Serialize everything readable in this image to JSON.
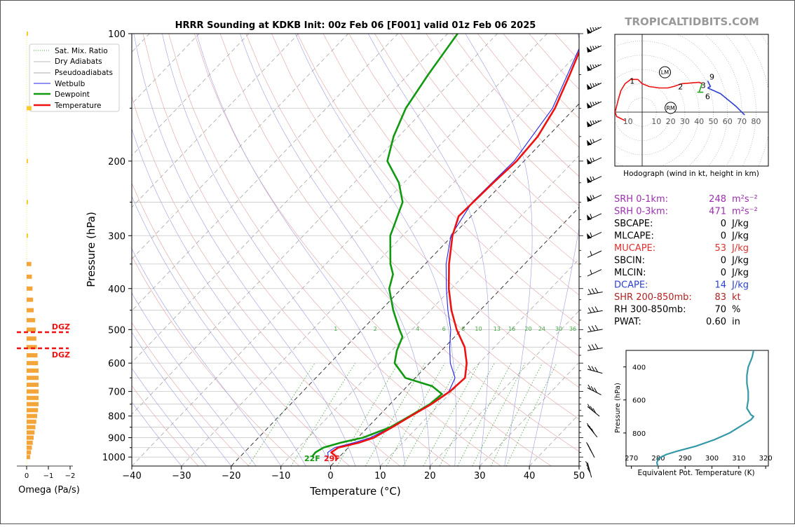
{
  "watermark": "TROPICALTIDBITS.COM",
  "chart_data": [
    {
      "type": "line",
      "name": "skew-t",
      "title": "HRRR Sounding at KDKB Init: 00z Feb 06 [F001] valid 01z Feb 06 2025",
      "xlabel": "Temperature (°C)",
      "ylabel": "Pressure (hPa)",
      "xlim": [
        -40,
        50
      ],
      "ylim": [
        1050,
        100
      ],
      "y_scale": "log",
      "x_ticks": [
        "−40",
        "−30",
        "−20",
        "−10",
        "0",
        "10",
        "20",
        "30",
        "40",
        "50"
      ],
      "y_ticks": [
        "100",
        "200",
        "300",
        "400",
        "500",
        "600",
        "700",
        "800",
        "900",
        "1000"
      ],
      "legend": [
        "Sat. Mix. Ratio",
        "Dry Adiabats",
        "Pseudoadiabats",
        "Wetbulb",
        "Dewpoint",
        "Temperature"
      ],
      "legend_position": "top-left",
      "grid": true,
      "colors": {
        "temperature": "#ee1111",
        "dewpoint": "#119911",
        "wetbulb": "#2222ee",
        "mixratio": "#44aa44"
      },
      "mixing_ratio_labels": [
        "1",
        "2",
        "4",
        "6",
        "8",
        "10",
        "13",
        "16",
        "20",
        "24",
        "30",
        "36"
      ],
      "surface_labels": {
        "dewpoint": "22F",
        "temperature": "29F"
      },
      "series": [
        {
          "name": "Temperature",
          "points": [
            [
              1000,
              -0.5
            ],
            [
              975,
              -2.5
            ],
            [
              950,
              -2.0
            ],
            [
              925,
              1.2
            ],
            [
              900,
              3.2
            ],
            [
              850,
              4.9
            ],
            [
              800,
              6.5
            ],
            [
              750,
              8.3
            ],
            [
              700,
              9.6
            ],
            [
              650,
              10.0
            ],
            [
              600,
              7.5
            ],
            [
              550,
              4.0
            ],
            [
              500,
              -1.0
            ],
            [
              450,
              -5.8
            ],
            [
              400,
              -10.5
            ],
            [
              350,
              -15.2
            ],
            [
              300,
              -20.0
            ],
            [
              270,
              -22.5
            ],
            [
              250,
              -22.3
            ],
            [
              225,
              -22.0
            ],
            [
              200,
              -21.5
            ],
            [
              175,
              -22.0
            ],
            [
              150,
              -24.0
            ],
            [
              125,
              -27.5
            ],
            [
              100,
              -32.0
            ]
          ]
        },
        {
          "name": "Dewpoint",
          "points": [
            [
              1000,
              -5.5
            ],
            [
              975,
              -5.7
            ],
            [
              950,
              -5.0
            ],
            [
              925,
              -2.5
            ],
            [
              900,
              1.0
            ],
            [
              850,
              4.5
            ],
            [
              800,
              6.3
            ],
            [
              750,
              8.0
            ],
            [
              710,
              8.5
            ],
            [
              680,
              5.0
            ],
            [
              650,
              -2.0
            ],
            [
              600,
              -7.0
            ],
            [
              560,
              -9.0
            ],
            [
              520,
              -10.5
            ],
            [
              500,
              -12.5
            ],
            [
              450,
              -17.5
            ],
            [
              400,
              -22.5
            ],
            [
              370,
              -24.5
            ],
            [
              350,
              -27.0
            ],
            [
              300,
              -32.5
            ],
            [
              280,
              -34.0
            ],
            [
              250,
              -36.5
            ],
            [
              225,
              -41.0
            ],
            [
              200,
              -47.5
            ],
            [
              175,
              -51.0
            ],
            [
              150,
              -54.0
            ],
            [
              125,
              -56.0
            ],
            [
              100,
              -58.0
            ]
          ]
        },
        {
          "name": "Wetbulb",
          "points": [
            [
              1000,
              -2.2
            ],
            [
              975,
              -3.2
            ],
            [
              950,
              -2.7
            ],
            [
              925,
              0.2
            ],
            [
              900,
              2.5
            ],
            [
              850,
              4.7
            ],
            [
              800,
              6.4
            ],
            [
              750,
              8.2
            ],
            [
              700,
              9.4
            ],
            [
              650,
              8.0
            ],
            [
              600,
              4.2
            ],
            [
              550,
              1.0
            ],
            [
              500,
              -2.2
            ],
            [
              450,
              -6.5
            ],
            [
              400,
              -11.0
            ],
            [
              350,
              -15.8
            ],
            [
              300,
              -20.3
            ],
            [
              250,
              -22.5
            ],
            [
              200,
              -22.0
            ],
            [
              150,
              -24.5
            ],
            [
              100,
              -32.2
            ]
          ]
        }
      ],
      "wind_barb_count": 24
    },
    {
      "type": "bar",
      "name": "omega",
      "xlabel": "Omega (Pa/s)",
      "x_ticks": [
        "0",
        "−1",
        "−2"
      ],
      "annotations": [
        "DGZ",
        "DGZ"
      ],
      "dgz_pressures": [
        505,
        560
      ],
      "colors": {
        "bars": "#f4a53a",
        "thin": "#f7cc2c",
        "dgz": "#ee1111"
      }
    },
    {
      "type": "line",
      "name": "hodograph",
      "xlabel": "Hodograph (wind in kt, height in km)",
      "x_ticks": [
        "10",
        "10",
        "20",
        "30",
        "40",
        "50",
        "60",
        "70",
        "80"
      ],
      "height_labels": [
        "1",
        "2",
        "3",
        "6",
        "9"
      ],
      "markers": [
        "LM",
        "RM"
      ]
    },
    {
      "type": "table",
      "name": "indices",
      "rows": [
        {
          "label": "SRH 0-1km:",
          "value": "248",
          "unit": "m²s⁻²",
          "color": "#9b2fae"
        },
        {
          "label": "SRH 0-3km:",
          "value": "471",
          "unit": "m²s⁻²",
          "color": "#9b2fae"
        },
        {
          "label": "SBCAPE:",
          "value": "0",
          "unit": "J/kg",
          "color": "#000000"
        },
        {
          "label": "MLCAPE:",
          "value": "0",
          "unit": "J/kg",
          "color": "#000000"
        },
        {
          "label": "MUCAPE:",
          "value": "53",
          "unit": "J/kg",
          "color": "#e03030"
        },
        {
          "label": "SBCIN:",
          "value": "0",
          "unit": "J/kg",
          "color": "#000000"
        },
        {
          "label": "MLCIN:",
          "value": "0",
          "unit": "J/kg",
          "color": "#000000"
        },
        {
          "label": "DCAPE:",
          "value": "14",
          "unit": "J/kg",
          "color": "#2a3fd0"
        },
        {
          "label": "SHR 200-850mb:",
          "value": "83",
          "unit": "kt",
          "color": "#b22222"
        },
        {
          "label": "RH 300-850mb:",
          "value": "70",
          "unit": "%",
          "color": "#000000"
        },
        {
          "label": "PWAT:",
          "value": "0.60",
          "unit": "in",
          "color": "#000000"
        }
      ]
    },
    {
      "type": "line",
      "name": "theta-e",
      "xlabel": "Equivalent Pot. Temperature (K)",
      "ylabel": "Pressure (hPa)",
      "x_ticks": [
        "270",
        "280",
        "290",
        "300",
        "310",
        "320"
      ],
      "y_ticks": [
        "400",
        "600",
        "800"
      ],
      "xlim": [
        268,
        321
      ],
      "ylim": [
        1000,
        300
      ],
      "color": "#3498a8",
      "points": [
        [
          300,
          315.5
        ],
        [
          340,
          315
        ],
        [
          400,
          313.5
        ],
        [
          450,
          313
        ],
        [
          500,
          313
        ],
        [
          550,
          313.5
        ],
        [
          600,
          313.5
        ],
        [
          650,
          313
        ],
        [
          690,
          314.5
        ],
        [
          700,
          315.5
        ],
        [
          720,
          314.5
        ],
        [
          760,
          310.5
        ],
        [
          800,
          306.5
        ],
        [
          840,
          301
        ],
        [
          880,
          294
        ],
        [
          910,
          287
        ],
        [
          930,
          283
        ],
        [
          955,
          280
        ],
        [
          980,
          279.5
        ],
        [
          1000,
          279.8
        ]
      ]
    }
  ]
}
